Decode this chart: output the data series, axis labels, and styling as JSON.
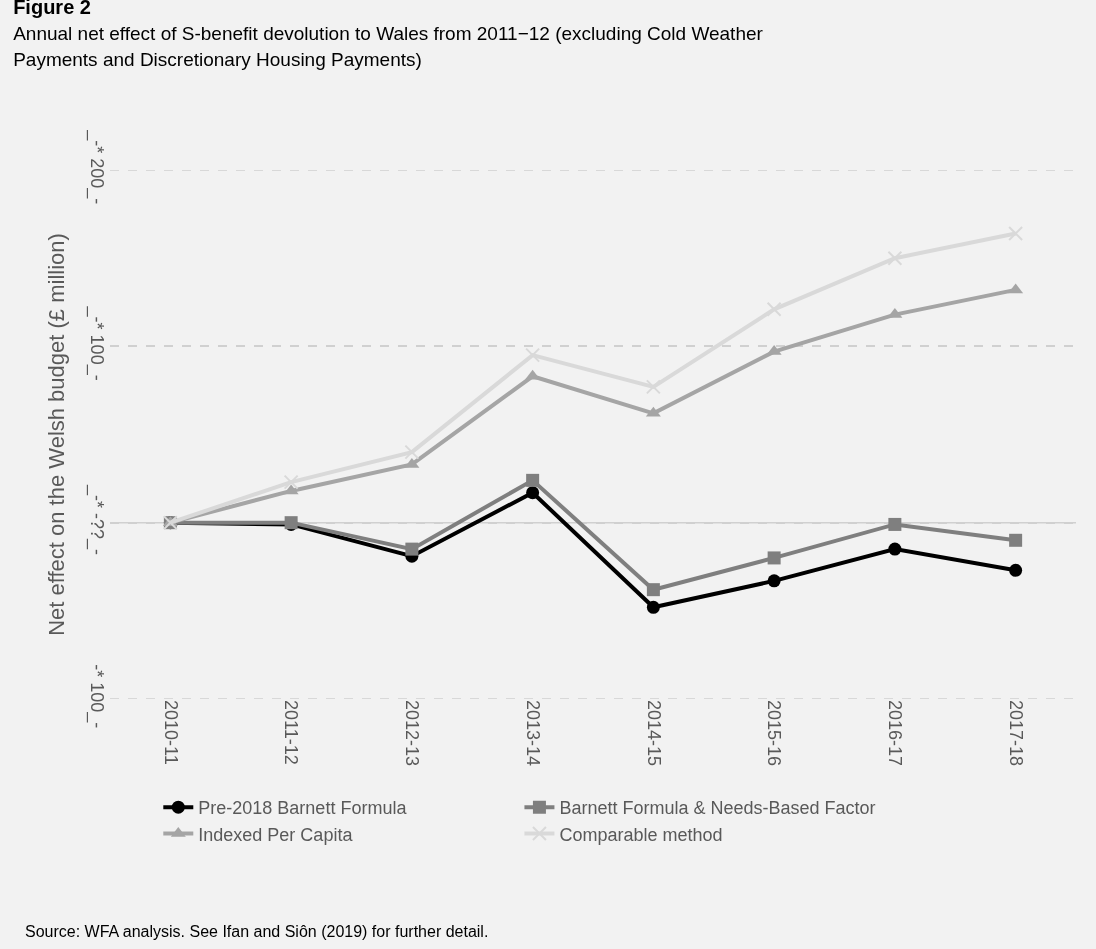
{
  "chart_data": {
    "type": "line",
    "title": "Figure 2",
    "subtitle": "Annual net effect of S-benefit devolution to Wales from 2011−12 (excluding Cold Weather Payments and Discretionary Housing Payments)",
    "ylabel": "Net effect on the Welsh budget (£ million)",
    "categories": [
      "2010-11",
      "2011-12",
      "2012-13",
      "2013-14",
      "2014-15",
      "2015-16",
      "2016-17",
      "2017-18"
    ],
    "series": [
      {
        "name": "Pre-2018 Barnett Formula",
        "color": "#000000",
        "marker": "circle",
        "values": [
          0,
          -1,
          -19,
          17,
          -48,
          -33,
          -15,
          -27
        ]
      },
      {
        "name": "Barnett Formula & Needs-Based Factor",
        "color": "#7f7f7f",
        "marker": "square",
        "values": [
          0,
          0,
          -15,
          24,
          -38,
          -20,
          -1,
          -10
        ]
      },
      {
        "name": "Indexed Per Capita",
        "color": "#a5a5a5",
        "marker": "triangle",
        "values": [
          0,
          18,
          33,
          83,
          62,
          97,
          118,
          132
        ]
      },
      {
        "name": "Comparable method",
        "color": "#d9d9d9",
        "marker": "cross",
        "values": [
          0,
          23,
          40,
          95,
          77,
          121,
          150,
          164
        ]
      }
    ],
    "ylim": [
      -100,
      200
    ],
    "yticks": [
      {
        "value": 200,
        "label": "_-* 200_-"
      },
      {
        "value": 100,
        "label": "_-* 100_-"
      },
      {
        "value": 0,
        "label": "_-* -??_-"
      },
      {
        "value": -100,
        "label": "-* 100_-"
      }
    ],
    "grid": "y",
    "legend": "bottom",
    "annotations": [
      "Source: WFA analysis. See Ifan and Siôn (2019) for further detail."
    ]
  }
}
